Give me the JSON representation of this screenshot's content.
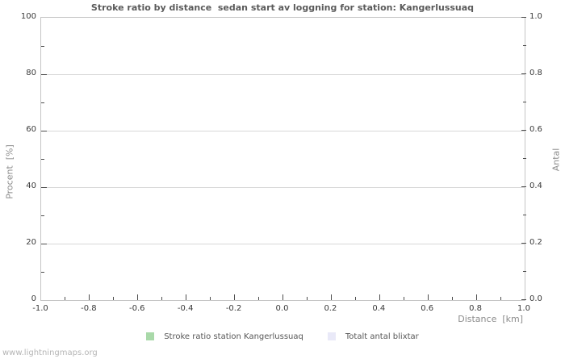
{
  "page": {
    "watermark": "www.lightningmaps.org"
  },
  "chart_data": {
    "type": "bar",
    "title": "Stroke ratio by distance  sedan start av loggning for station: Kangerlussuaq",
    "xlabel": "Distance  [km]",
    "ylabel_left": "Procent  [%]",
    "ylabel_right": "Antal",
    "xlim": [
      -1.0,
      1.0
    ],
    "ylim_left": [
      0,
      100
    ],
    "ylim_right": [
      0.0,
      1.0
    ],
    "x_ticks": [
      "-1.0",
      "-0.8",
      "-0.6",
      "-0.4",
      "-0.2",
      "0.0",
      "0.2",
      "0.4",
      "0.6",
      "0.8",
      "1.0"
    ],
    "y_left_ticks": [
      "0",
      "20",
      "40",
      "60",
      "80",
      "100"
    ],
    "y_right_ticks": [
      "0.0",
      "0.2",
      "0.4",
      "0.6",
      "0.8",
      "1.0"
    ],
    "minor_ticks_between_majors": 1,
    "grid": "horizontal-major-only",
    "legend_position": "bottom-center",
    "legend": [
      {
        "label": "Stroke ratio station Kangerlussuaq",
        "color": "#a9d9a9"
      },
      {
        "label": "Totalt antal blixtar",
        "color": "#e9e9f8"
      }
    ],
    "series": [
      {
        "name": "Stroke ratio station Kangerlussuaq",
        "color": "#a9d9a9",
        "values": []
      },
      {
        "name": "Totalt antal blixtar",
        "color": "#e9e9f8",
        "values": []
      }
    ],
    "data_empty": true
  }
}
